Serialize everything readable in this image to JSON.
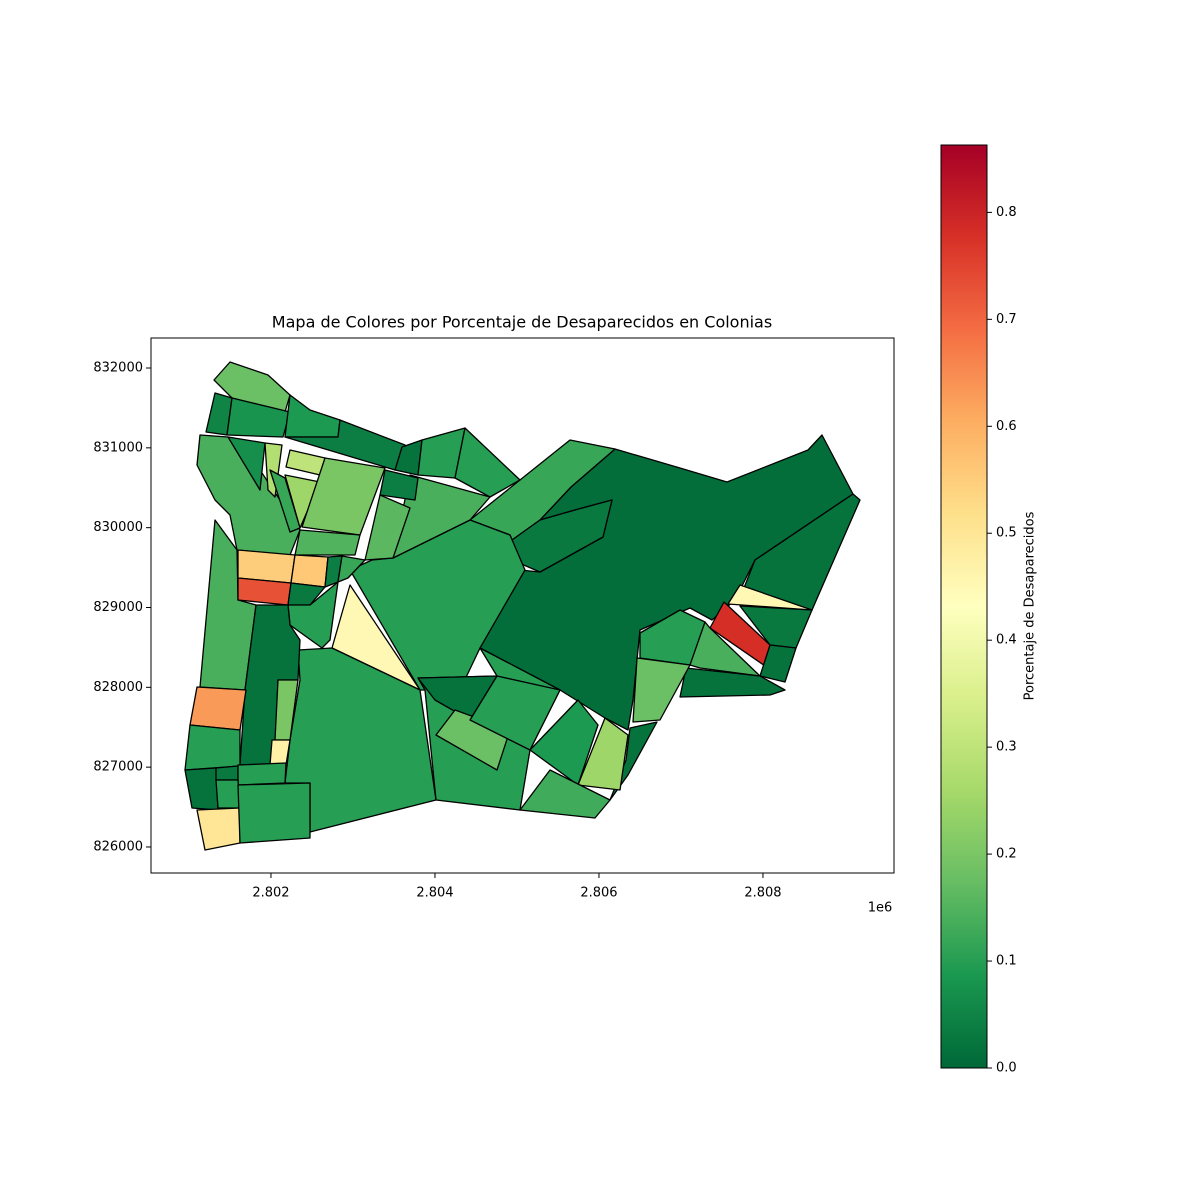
{
  "chart_data": {
    "type": "choropleth",
    "title": "Mapa de Colores por Porcentaje de Desaparecidos en Colonias",
    "colorbar_label": "Porcentaje de Desaparecidos",
    "colormap": "RdYlGn_r",
    "clim": [
      0,
      0.863
    ],
    "cticks": [
      0.0,
      0.1,
      0.2,
      0.3,
      0.4,
      0.5,
      0.6,
      0.7,
      0.8
    ],
    "xlim": [
      2800537,
      2809598
    ],
    "xticks": [
      {
        "value": 2802000,
        "label": "2.802"
      },
      {
        "value": 2804000,
        "label": "2.804"
      },
      {
        "value": 2806000,
        "label": "2.806"
      },
      {
        "value": 2808000,
        "label": "2.808"
      }
    ],
    "x_offset_label": "1e6",
    "ylim": [
      825674,
      832376
    ],
    "yticks": [
      826000,
      827000,
      828000,
      829000,
      830000,
      831000,
      832000
    ],
    "values": [
      0.01,
      0.02,
      0.45,
      0.78,
      0.03,
      0.02,
      0.1,
      0.14,
      0.02,
      0.18,
      0.02,
      0.25,
      0.12,
      0.03,
      0.1,
      0.45,
      0.1,
      0.1,
      0.02,
      0.18,
      0.1,
      0.09,
      0.13,
      0.18,
      0.05,
      0.08,
      0.09,
      0.04,
      0.02,
      0.1,
      0.1,
      0.14,
      0.14,
      0.14,
      0.07,
      0.28,
      0.3,
      0.25,
      0.2,
      0.12,
      0.04,
      0.16,
      0.15,
      0.55,
      0.56,
      0.73,
      0.03,
      0.04,
      0.12,
      0.1,
      0.02,
      0.63,
      0.1,
      0.2,
      0.47,
      0.02,
      0.03,
      0.1,
      0.1,
      0.5,
      0.1
    ]
  }
}
